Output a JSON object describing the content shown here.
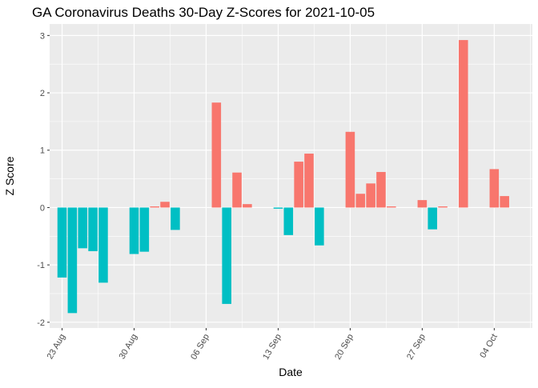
{
  "chart_data": {
    "type": "bar",
    "title": "GA Coronavirus Deaths 30-Day Z-Scores for 2021-10-05",
    "xlabel": "Date",
    "ylabel": "Z Score",
    "ylim": [
      -2.1,
      3.2
    ],
    "yticks": [
      -2,
      -1,
      0,
      1,
      2,
      3
    ],
    "xticks": [
      {
        "date": "2021-08-23",
        "label": "23 Aug"
      },
      {
        "date": "2021-08-30",
        "label": "30 Aug"
      },
      {
        "date": "2021-09-06",
        "label": "06 Sep"
      },
      {
        "date": "2021-09-13",
        "label": "13 Sep"
      },
      {
        "date": "2021-09-20",
        "label": "20 Sep"
      },
      {
        "date": "2021-09-27",
        "label": "27 Sep"
      },
      {
        "date": "2021-10-04",
        "label": "04 Oct"
      }
    ],
    "xlim": [
      "2021-08-21T19:00",
      "2021-10-07T17:00"
    ],
    "grid": true,
    "colors": {
      "positive": "#F8766D",
      "negative": "#00BFC4",
      "panel": "#EBEBEB",
      "grid": "#FFFFFF"
    },
    "points": [
      {
        "date": "2021-08-23",
        "value": -1.22
      },
      {
        "date": "2021-08-24",
        "value": -1.84
      },
      {
        "date": "2021-08-25",
        "value": -0.71
      },
      {
        "date": "2021-08-26",
        "value": -0.76
      },
      {
        "date": "2021-08-27",
        "value": -1.31
      },
      {
        "date": "2021-08-30",
        "value": -0.81
      },
      {
        "date": "2021-08-31",
        "value": -0.77
      },
      {
        "date": "2021-09-01",
        "value": 0.02
      },
      {
        "date": "2021-09-02",
        "value": 0.1
      },
      {
        "date": "2021-09-03",
        "value": -0.39
      },
      {
        "date": "2021-09-07",
        "value": 1.83
      },
      {
        "date": "2021-09-08",
        "value": -1.68
      },
      {
        "date": "2021-09-09",
        "value": 0.61
      },
      {
        "date": "2021-09-10",
        "value": 0.06
      },
      {
        "date": "2021-09-13",
        "value": -0.02
      },
      {
        "date": "2021-09-14",
        "value": -0.48
      },
      {
        "date": "2021-09-15",
        "value": 0.8
      },
      {
        "date": "2021-09-16",
        "value": 0.94
      },
      {
        "date": "2021-09-17",
        "value": -0.66
      },
      {
        "date": "2021-09-20",
        "value": 1.32
      },
      {
        "date": "2021-09-21",
        "value": 0.24
      },
      {
        "date": "2021-09-22",
        "value": 0.42
      },
      {
        "date": "2021-09-23",
        "value": 0.62
      },
      {
        "date": "2021-09-24",
        "value": 0.02
      },
      {
        "date": "2021-09-27",
        "value": 0.13
      },
      {
        "date": "2021-09-28",
        "value": -0.38
      },
      {
        "date": "2021-09-29",
        "value": 0.02
      },
      {
        "date": "2021-10-01",
        "value": 2.92
      },
      {
        "date": "2021-10-04",
        "value": 0.67
      },
      {
        "date": "2021-10-05",
        "value": 0.2
      }
    ]
  }
}
